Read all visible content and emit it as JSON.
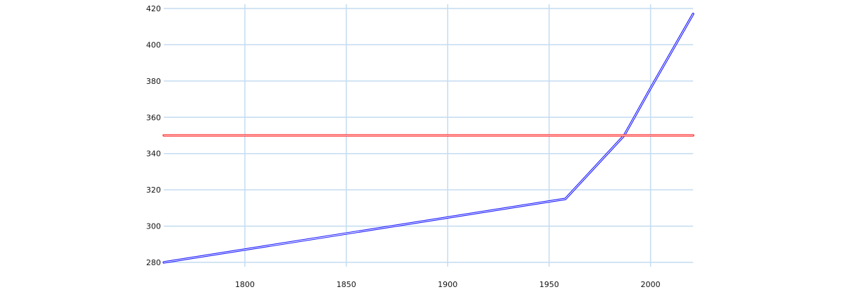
{
  "chart_data": {
    "type": "line",
    "title": "",
    "xlabel": "",
    "ylabel": "",
    "xlim": [
      1760,
      2021
    ],
    "ylim": [
      280,
      420
    ],
    "x_ticks": [
      1800,
      1850,
      1900,
      1950,
      2000
    ],
    "y_ticks": [
      280,
      300,
      320,
      340,
      360,
      380,
      400,
      420
    ],
    "grid": true,
    "legend": "none",
    "series": [
      {
        "color": "#1a1aff",
        "x": [
          1760,
          1958,
          1987,
          2000,
          2021
        ],
        "y": [
          280,
          315,
          350,
          376,
          417
        ]
      },
      {
        "color": "#ff2020",
        "x": [
          1760,
          2021
        ],
        "y": [
          350,
          350
        ]
      }
    ]
  }
}
